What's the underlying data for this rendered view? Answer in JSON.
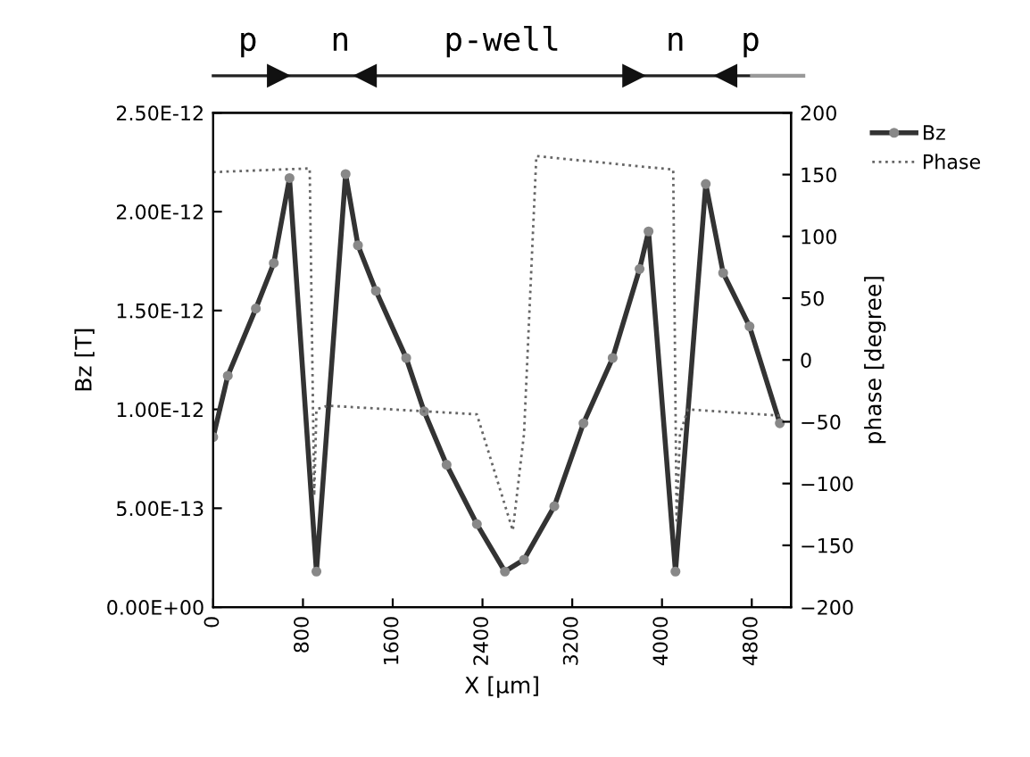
{
  "chart_data": {
    "type": "line",
    "xlabel": "X [μm]",
    "ylabel": "Bz [T]",
    "y2label": "phase [degree]",
    "annotations": [
      "p",
      "n",
      "p-well",
      "n",
      "p"
    ],
    "xlim": [
      0,
      5150
    ],
    "xticks": [
      0,
      800,
      1600,
      2400,
      3200,
      4000,
      4800
    ],
    "ylim": [
      0,
      2.5e-12
    ],
    "yticks": [
      {
        "value": 0,
        "label": "0.00E+00"
      },
      {
        "value": 5e-13,
        "label": "5.00E-13"
      },
      {
        "value": 1e-12,
        "label": "1.00E-12"
      },
      {
        "value": 1.5e-12,
        "label": "1.50E-12"
      },
      {
        "value": 2e-12,
        "label": "2.00E-12"
      },
      {
        "value": 2.5e-12,
        "label": "2.50E-12"
      }
    ],
    "y2lim": [
      -200,
      200
    ],
    "y2ticks": [
      -200,
      -150,
      -100,
      -50,
      0,
      50,
      100,
      150,
      200
    ],
    "legend": "top right",
    "grid": false,
    "series": [
      {
        "name": "Bz",
        "color": "#333333",
        "marker": "circle",
        "line_style": "solid",
        "x": [
          0,
          130,
          380,
          540,
          680,
          920,
          1180,
          1290,
          1450,
          1720,
          1880,
          2080,
          2350,
          2600,
          2770,
          3040,
          3300,
          3560,
          3800,
          3880,
          4120,
          4390,
          4545,
          4780,
          5050
        ],
        "values": [
          8.6e-13,
          1.17e-12,
          1.51e-12,
          1.74e-12,
          2.17e-12,
          1.8e-13,
          2.19e-12,
          1.83e-12,
          1.6e-12,
          1.26e-12,
          9.9e-13,
          7.2e-13,
          4.2e-13,
          1.8e-13,
          2.4e-13,
          5.1e-13,
          9.3e-13,
          1.26e-12,
          1.71e-12,
          1.9e-12,
          1.8e-13,
          2.14e-12,
          1.69e-12,
          1.42e-12,
          9.3e-13
        ]
      },
      {
        "name": "Phase",
        "color": "#666666",
        "axis": "y2",
        "marker": "none",
        "line_style": "dotted",
        "x": [
          0,
          860,
          900,
          920,
          1020,
          2350,
          2670,
          2770,
          2880,
          4100,
          4130,
          4160,
          4230,
          5050
        ],
        "values": [
          152,
          155,
          -110,
          -40,
          -37,
          -44,
          -138,
          -60,
          165,
          154,
          -130,
          -60,
          -40,
          -45
        ]
      }
    ]
  }
}
